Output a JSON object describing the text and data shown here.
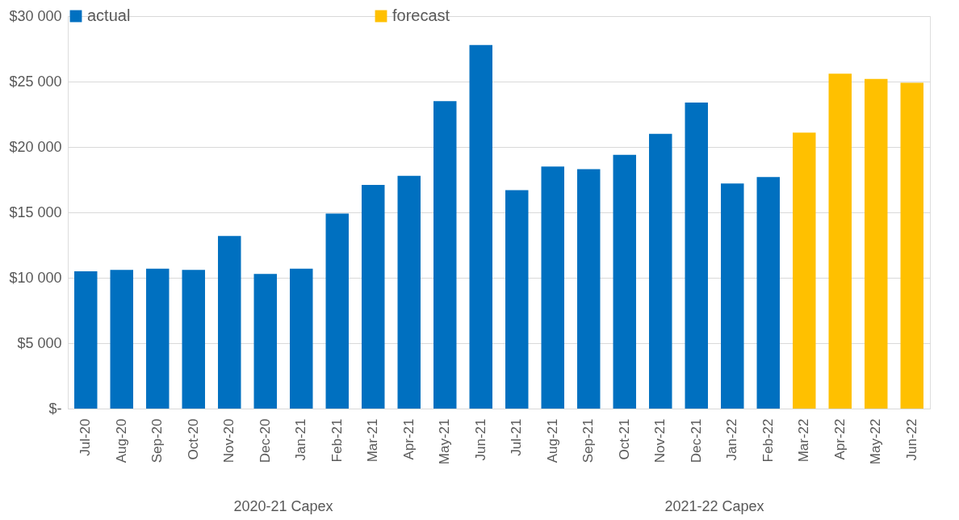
{
  "chart_data": {
    "type": "bar",
    "categories": [
      "Jul-20",
      "Aug-20",
      "Sep-20",
      "Oct-20",
      "Nov-20",
      "Dec-20",
      "Jan-21",
      "Feb-21",
      "Mar-21",
      "Apr-21",
      "May-21",
      "Jun-21",
      "Jul-21",
      "Aug-21",
      "Sep-21",
      "Oct-21",
      "Nov-21",
      "Dec-21",
      "Jan-22",
      "Feb-22",
      "Mar-22",
      "Apr-22",
      "May-22",
      "Jun-22"
    ],
    "series": [
      {
        "name": "actual",
        "color": "#0070c0",
        "values": [
          10500,
          10600,
          10700,
          10600,
          13200,
          10300,
          10700,
          14900,
          17100,
          17800,
          23500,
          27800,
          16700,
          18500,
          18300,
          19400,
          21000,
          23400,
          17200,
          17700,
          null,
          null,
          null,
          null
        ]
      },
      {
        "name": "forecast",
        "color": "#ffc000",
        "values": [
          null,
          null,
          null,
          null,
          null,
          null,
          null,
          null,
          null,
          null,
          null,
          null,
          null,
          null,
          null,
          null,
          null,
          null,
          null,
          null,
          21100,
          25600,
          25200,
          24900
        ]
      }
    ],
    "ylim": [
      0,
      30000
    ],
    "yticks": [
      {
        "value": 0,
        "label": "$-"
      },
      {
        "value": 5000,
        "label": "$5 000"
      },
      {
        "value": 10000,
        "label": "$10 000"
      },
      {
        "value": 15000,
        "label": "$15 000"
      },
      {
        "value": 20000,
        "label": "$20 000"
      },
      {
        "value": 25000,
        "label": "$25 000"
      },
      {
        "value": 30000,
        "label": "$30 000"
      }
    ],
    "annotations": [
      "2020-21 Capex",
      "2021-22 Capex"
    ],
    "grid": "y",
    "legend": "top"
  }
}
